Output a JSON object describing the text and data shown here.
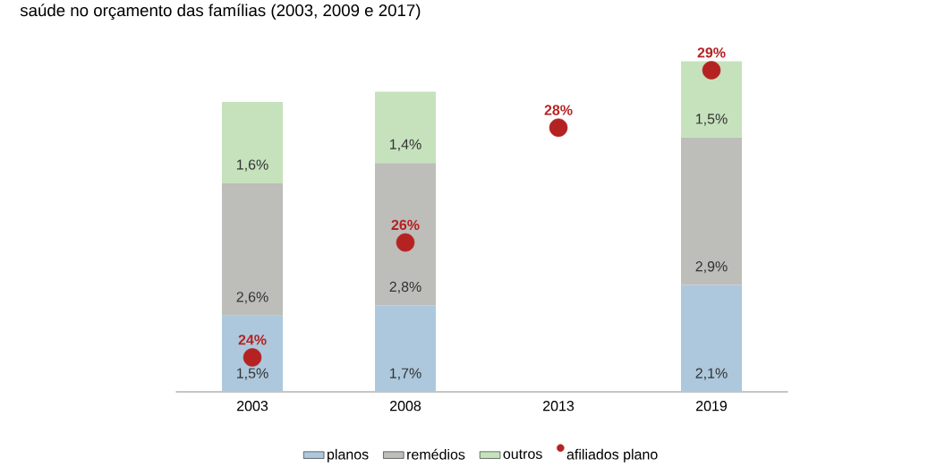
{
  "chart_data": {
    "type": "bar",
    "title": "saúde no orçamento das famílias (2003, 2009 e 2017)",
    "categories": [
      "2003",
      "2008",
      "2013",
      "2019"
    ],
    "stacked": true,
    "tick_labels": "x",
    "legend": "bottom",
    "grid": false,
    "series": [
      {
        "name": "planos",
        "color": "#adc8dc",
        "values": [
          1.5,
          1.7,
          null,
          2.1
        ],
        "value_labels": [
          "1,5%",
          "1,7%",
          null,
          "2,1%"
        ]
      },
      {
        "name": "remédios",
        "color": "#bdbdba",
        "values": [
          2.6,
          2.8,
          null,
          2.9
        ],
        "value_labels": [
          "2,6%",
          "2,8%",
          null,
          "2,9%"
        ]
      },
      {
        "name": "outros",
        "color": "#c6e2bd",
        "values": [
          1.6,
          1.4,
          null,
          1.5
        ],
        "value_labels": [
          "1,6%",
          "1,4%",
          null,
          "1,5%"
        ]
      },
      {
        "name": "afiliados plano",
        "type": "scatter",
        "axis": "y2",
        "color": "#b52222",
        "values": [
          24,
          26,
          28,
          29
        ],
        "value_labels": [
          "24%",
          "26%",
          "28%",
          "29%"
        ]
      }
    ]
  }
}
